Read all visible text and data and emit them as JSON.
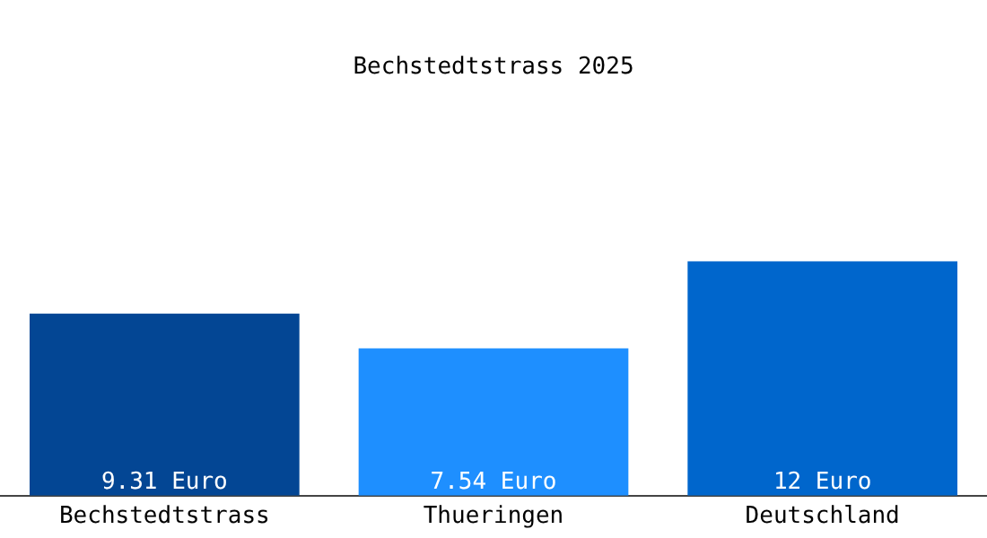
{
  "chart_data": {
    "type": "bar",
    "title": "Bechstedtstrass 2025",
    "categories": [
      "Bechstedtstrass",
      "Thueringen",
      "Deutschland"
    ],
    "values": [
      9.31,
      7.54,
      12
    ],
    "value_labels": [
      "9.31 Euro",
      "7.54 Euro",
      "12 Euro"
    ],
    "colors": [
      "#034694",
      "#1e8fff",
      "#0066cc"
    ],
    "grid": false,
    "legend": false
  }
}
